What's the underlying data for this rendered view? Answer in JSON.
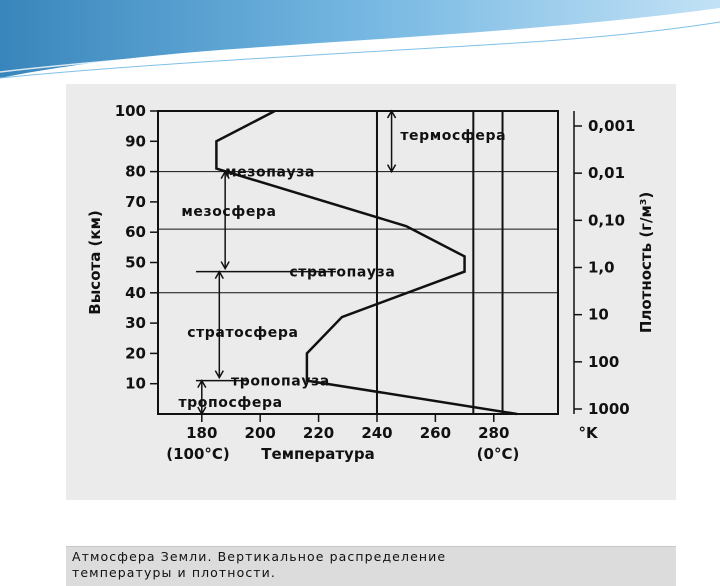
{
  "theme": {
    "header_blue": "#3f8fc4",
    "header_light": "#a9d3ee",
    "figure_bg": "#ebebeb",
    "ink": "#111111"
  },
  "caption": {
    "line1": "Атмосфера Земли. Вертикальное распределение",
    "line2": "температуры и плотности."
  },
  "chart_data": {
    "type": "line",
    "title": "",
    "xlabel": "Температура",
    "xlabel_prefix": "(100°C)",
    "xlabel_suffix": "(0°C)",
    "x_unit": "°K",
    "ylabel_left": "Высота (км)",
    "ylabel_right": "Плотность (г/м³)",
    "xlim": [
      165,
      302
    ],
    "ylim": [
      0,
      100
    ],
    "x_ticks": [
      "180",
      "200",
      "220",
      "240",
      "260",
      "280"
    ],
    "y_ticks": [
      "10",
      "20",
      "30",
      "40",
      "50",
      "60",
      "70",
      "80",
      "90",
      "100"
    ],
    "density_ticks": [
      "0,001",
      "0,01",
      "0,10",
      "1,0",
      "10",
      "100",
      "1000"
    ],
    "series": [
      {
        "name": "",
        "x": [
          288,
          216,
          216,
          228,
          270,
          270,
          250,
          185,
          185,
          205
        ],
        "y": [
          0,
          11,
          20,
          32,
          47,
          52,
          62,
          81,
          90,
          100
        ]
      }
    ],
    "reference_lines_x": [
      240,
      273,
      283
    ],
    "layer_boundaries_y": [
      80,
      61,
      40
    ],
    "annotations": [
      {
        "label": "термосфера",
        "x": 248,
        "y": 92
      },
      {
        "label": "мезопауза",
        "x": 188,
        "y": 80
      },
      {
        "label": "мезосфера",
        "x": 173,
        "y": 67
      },
      {
        "label": "стратопауза",
        "x": 210,
        "y": 47
      },
      {
        "label": "стратосфера",
        "x": 175,
        "y": 27
      },
      {
        "label": "тропопауза",
        "x": 190,
        "y": 11
      },
      {
        "label": "тропосфера",
        "x": 172,
        "y": 4
      }
    ]
  }
}
